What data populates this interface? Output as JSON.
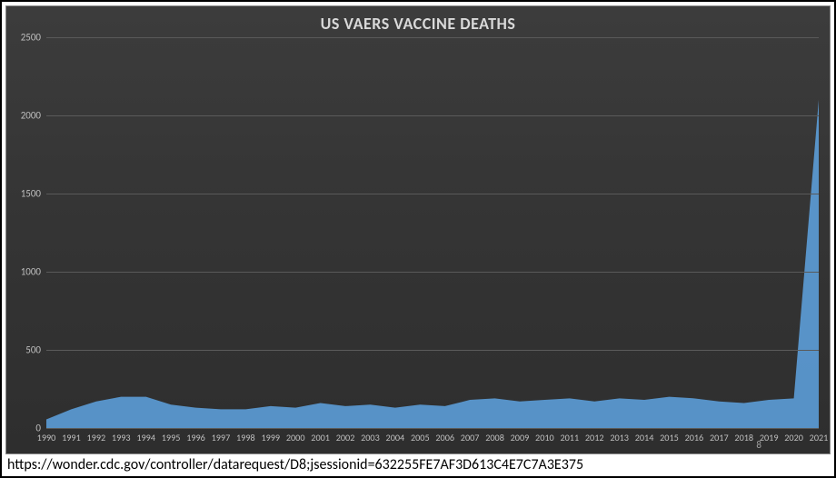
{
  "chart": {
    "type": "area",
    "title": "US VAERS VACCINE DEATHS",
    "title_fontsize": 18,
    "title_color": "#d9d9d9",
    "background_gradient_top": "#3c3c3c",
    "background_gradient_bottom": "#2e2e2e",
    "grid_color": "#5a5a5a",
    "axis_label_color": "#bfbfbf",
    "axis_label_fontsize": 11,
    "series_fill": "#5b9bd5",
    "series_fill_opacity": 0.92,
    "ylim": [
      0,
      2500
    ],
    "ytick_step": 500,
    "yticks": [
      0,
      500,
      1000,
      1500,
      2000,
      2500
    ],
    "categories": [
      "1990",
      "1991",
      "1992",
      "1993",
      "1994",
      "1995",
      "1996",
      "1997",
      "1998",
      "1999",
      "2000",
      "2001",
      "2002",
      "2003",
      "2004",
      "2005",
      "2006",
      "2007",
      "2008",
      "2009",
      "2010",
      "2011",
      "2012",
      "2013",
      "2014",
      "2015",
      "2016",
      "2017",
      "2018",
      "2019",
      "2020",
      "2021"
    ],
    "values": [
      55,
      120,
      170,
      200,
      200,
      150,
      130,
      120,
      120,
      140,
      130,
      160,
      140,
      150,
      130,
      150,
      140,
      180,
      190,
      170,
      180,
      190,
      170,
      190,
      180,
      200,
      190,
      170,
      160,
      180,
      190,
      2100
    ]
  },
  "footer_url": "https://wonder.cdc.gov/controller/datarequest/D8;jsessionid=632255FE7AF3D613C4E7C7A3E375",
  "page_number": "8"
}
